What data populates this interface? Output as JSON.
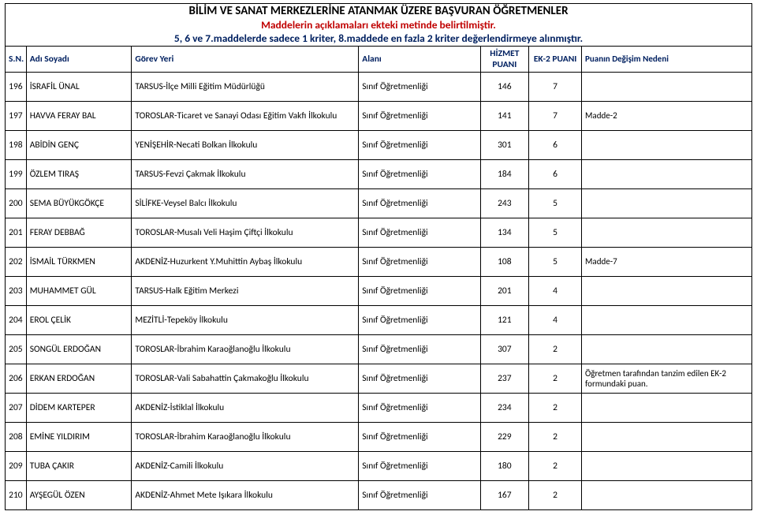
{
  "header": {
    "title": "BİLİM VE SANAT MERKEZLERİNE ATANMAK ÜZERE BAŞVURAN ÖĞRETMENLER",
    "subtitle": "Maddelerin açıklamaları ekteki metinde belirtilmiştir.",
    "note": "5, 6 ve 7.maddelerde sadece 1 kriter, 8.maddede en fazla 2 kriter değerlendirmeye alınmıştır."
  },
  "columns": {
    "sn": "S.N.",
    "adi": "Adı Soyadı",
    "gorev": "Görev Yeri",
    "alan": "Alanı",
    "hizmet": "HİZMET PUANI",
    "ek2": "EK-2 PUANI",
    "neden": "Puanın Değişim Nedeni"
  },
  "rows": [
    {
      "sn": "196",
      "adi": "İSRAFİL ÜNAL",
      "gorev": "TARSUS-İlçe Milli Eğitim Müdürlüğü",
      "alan": "Sınıf Öğretmenliği",
      "hiz": "146",
      "ek2": "7",
      "ned": ""
    },
    {
      "sn": "197",
      "adi": "HAVVA FERAY BAL",
      "gorev": "TOROSLAR-Ticaret ve Sanayi Odası Eğitim Vakfı İlkokulu",
      "alan": "Sınıf Öğretmenliği",
      "hiz": "141",
      "ek2": "7",
      "ned": "Madde-2"
    },
    {
      "sn": "198",
      "adi": "ABİDİN GENÇ",
      "gorev": "YENİŞEHİR-Necati Bolkan İlkokulu",
      "alan": "Sınıf Öğretmenliği",
      "hiz": "301",
      "ek2": "6",
      "ned": ""
    },
    {
      "sn": "199",
      "adi": "ÖZLEM TIRAŞ",
      "gorev": "TARSUS-Fevzi Çakmak İlkokulu",
      "alan": "Sınıf Öğretmenliği",
      "hiz": "184",
      "ek2": "6",
      "ned": ""
    },
    {
      "sn": "200",
      "adi": "SEMA BÜYÜKGÖKÇE",
      "gorev": "SİLİFKE-Veysel Balcı İlkokulu",
      "alan": "Sınıf Öğretmenliği",
      "hiz": "243",
      "ek2": "5",
      "ned": ""
    },
    {
      "sn": "201",
      "adi": "FERAY DEBBAĞ",
      "gorev": "TOROSLAR-Musalı Veli Haşim Çiftçi İlkokulu",
      "alan": "Sınıf Öğretmenliği",
      "hiz": "134",
      "ek2": "5",
      "ned": ""
    },
    {
      "sn": "202",
      "adi": "İSMAİL TÜRKMEN",
      "gorev": "AKDENİZ-Huzurkent Y.Muhittin Aybaş İlkokulu",
      "alan": "Sınıf Öğretmenliği",
      "hiz": "108",
      "ek2": "5",
      "ned": "Madde-7"
    },
    {
      "sn": "203",
      "adi": "MUHAMMET GÜL",
      "gorev": "TARSUS-Halk Eğitim Merkezi",
      "alan": "Sınıf Öğretmenliği",
      "hiz": "201",
      "ek2": "4",
      "ned": ""
    },
    {
      "sn": "204",
      "adi": "EROL ÇELİK",
      "gorev": "MEZİTLİ-Tepeköy İlkokulu",
      "alan": "Sınıf Öğretmenliği",
      "hiz": "121",
      "ek2": "4",
      "ned": ""
    },
    {
      "sn": "205",
      "adi": "SONGÜL ERDOĞAN",
      "gorev": "TOROSLAR-İbrahim Karaoğlanoğlu İlkokulu",
      "alan": "Sınıf Öğretmenliği",
      "hiz": "307",
      "ek2": "2",
      "ned": ""
    },
    {
      "sn": "206",
      "adi": "ERKAN ERDOĞAN",
      "gorev": "TOROSLAR-Vali Sabahattin Çakmakoğlu İlkokulu",
      "alan": "Sınıf Öğretmenliği",
      "hiz": "237",
      "ek2": "2",
      "ned": "Öğretmen tarafından tanzim edilen EK-2 formundaki puan."
    },
    {
      "sn": "207",
      "adi": "DİDEM KARTEPER",
      "gorev": "AKDENİZ-İstiklal İlkokulu",
      "alan": "Sınıf Öğretmenliği",
      "hiz": "234",
      "ek2": "2",
      "ned": ""
    },
    {
      "sn": "208",
      "adi": "EMİNE YILDIRIM",
      "gorev": "TOROSLAR-İbrahim Karaoğlanoğlu İlkokulu",
      "alan": "Sınıf Öğretmenliği",
      "hiz": "229",
      "ek2": "2",
      "ned": ""
    },
    {
      "sn": "209",
      "adi": "TUBA ÇAKIR",
      "gorev": "AKDENİZ-Camili İlkokulu",
      "alan": "Sınıf Öğretmenliği",
      "hiz": "180",
      "ek2": "2",
      "ned": ""
    },
    {
      "sn": "210",
      "adi": "AYŞEGÜL ÖZEN",
      "gorev": "AKDENİZ-Ahmet Mete Işıkara İlkokulu",
      "alan": "Sınıf Öğretmenliği",
      "hiz": "167",
      "ek2": "2",
      "ned": ""
    }
  ]
}
